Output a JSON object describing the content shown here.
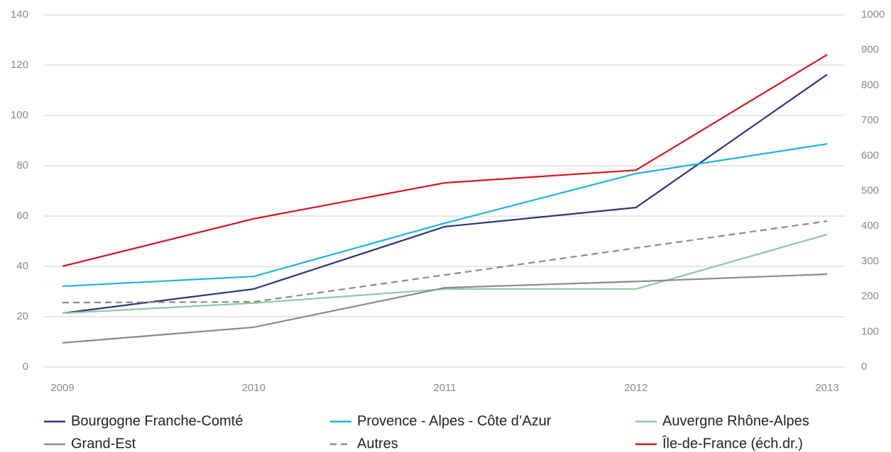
{
  "chart_data": {
    "type": "line",
    "x": [
      2009,
      2010,
      2011,
      2012,
      2013
    ],
    "xlim": [
      2009,
      2013
    ],
    "ylim": [
      0,
      140
    ],
    "yticks": [
      0,
      20,
      40,
      60,
      80,
      100,
      120,
      140
    ],
    "y2lim": [
      0,
      1000
    ],
    "y2ticks": [
      0,
      100,
      200,
      300,
      400,
      500,
      600,
      700,
      800,
      900,
      1000
    ],
    "grid": true,
    "legend": "bottom",
    "series": [
      {
        "name": "Bourgogne Franche-Comté",
        "color": "#2b3480",
        "linestyle": "solid",
        "values": [
          21.4,
          31,
          55.8,
          63.4,
          116.3
        ]
      },
      {
        "name": "Provence - Alpes - Côte d’Azur",
        "color": "#1ab4e6",
        "linestyle": "solid",
        "values": [
          32.1,
          36,
          57.2,
          76.9,
          88.7
        ]
      },
      {
        "name": "Auvergne Rhône-Alpes",
        "color": "#8dc9a0",
        "linestyle": "solid",
        "values": [
          21.4,
          25.4,
          31,
          31,
          52.7
        ]
      },
      {
        "name": "Grand-Est",
        "color": "#8a8a8a",
        "linestyle": "solid",
        "values": [
          9.6,
          15.8,
          31.5,
          34,
          36.9
        ]
      },
      {
        "name": "Autres",
        "color": "#8a8a8a",
        "linestyle": "dashed",
        "values": [
          25.6,
          25.9,
          36.6,
          47.3,
          58
        ]
      },
      {
        "name": "Île-de-France (éch.dr.)",
        "color": "#d7141c",
        "linestyle": "solid",
        "axis": "y2",
        "values": [
          286,
          421,
          523,
          559,
          887
        ]
      }
    ]
  }
}
